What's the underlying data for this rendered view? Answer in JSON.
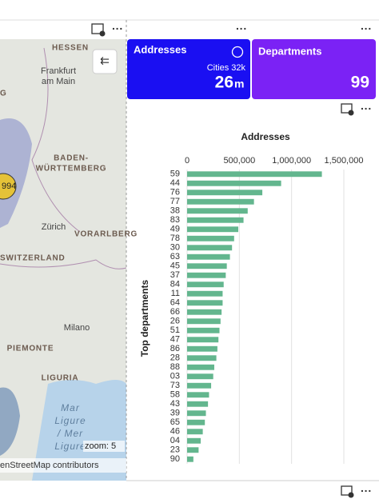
{
  "map": {
    "labels": [
      "HESSEN",
      "Frankfurt",
      "am Main",
      "G",
      "BADEN-",
      "WÜRTTEMBERG",
      "994",
      "Zürich",
      "VORARLBERG",
      "SWITZERLAND",
      "Milano",
      "PIEMONTE",
      "LIGURIA",
      "Mar",
      "Ligure",
      "/ Mer",
      "Ligure"
    ],
    "zoom": "zoom: 5",
    "attribution": "enStreetMap contributors"
  },
  "cards": [
    {
      "title": "Addresses",
      "subtitle": "Cities 32k",
      "value": "26",
      "unit": "m"
    },
    {
      "title": "Departments",
      "value": "99"
    }
  ],
  "chart_data": {
    "type": "bar",
    "orientation": "horizontal",
    "title": "Addresses",
    "y_label": "Top departments",
    "color": "#63b68e",
    "categories": [
      "59",
      "44",
      "76",
      "77",
      "38",
      "83",
      "49",
      "78",
      "30",
      "63",
      "45",
      "37",
      "84",
      "11",
      "64",
      "66",
      "26",
      "51",
      "47",
      "86",
      "28",
      "88",
      "03",
      "73",
      "58",
      "43",
      "39",
      "65",
      "46",
      "04",
      "23",
      "90"
    ],
    "values": [
      1290000,
      900000,
      720000,
      640000,
      580000,
      540000,
      490000,
      450000,
      430000,
      410000,
      380000,
      370000,
      350000,
      340000,
      340000,
      330000,
      320000,
      310000,
      300000,
      290000,
      280000,
      260000,
      250000,
      230000,
      210000,
      200000,
      180000,
      170000,
      150000,
      130000,
      110000,
      60000
    ],
    "xlim": [
      0,
      1500000
    ],
    "xticks": [
      0,
      {
        "value": 500000,
        "label": "500,000"
      },
      {
        "value": 1000000,
        "label": "1,000,000"
      },
      {
        "value": 1500000,
        "label": "1,500,000"
      }
    ],
    "grid": true
  }
}
